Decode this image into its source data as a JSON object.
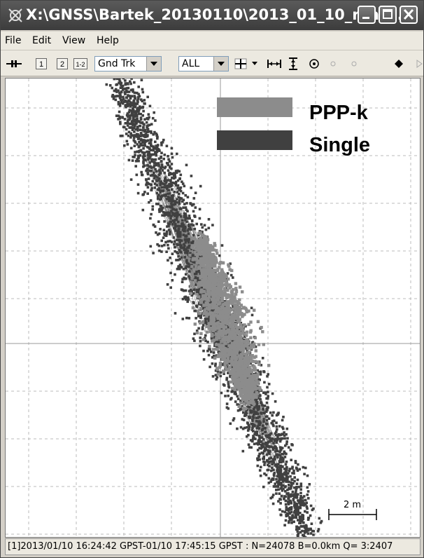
{
  "window": {
    "title": "X:\\GNSS\\Bartek_20130110\\2013_01_10_real_..."
  },
  "menu": {
    "file": "File",
    "edit": "Edit",
    "view": "View",
    "help": "Help"
  },
  "toolbar": {
    "btn1": "1",
    "btn2": "2",
    "btn12": "1-2",
    "plot_type": "Gnd Trk",
    "sat_filter": "ALL"
  },
  "legend": {
    "ppp_label": "PPP-k",
    "single_label": "Single",
    "ppp_color": "#8c8c8c",
    "single_color": "#404040"
  },
  "scale": {
    "label": "2 m"
  },
  "status": {
    "text": "[1]2013/01/10 16:24:42 GPST-01/10 17:45:15 GPST : N=24078 B=0.0km Q= 3:2407"
  }
}
